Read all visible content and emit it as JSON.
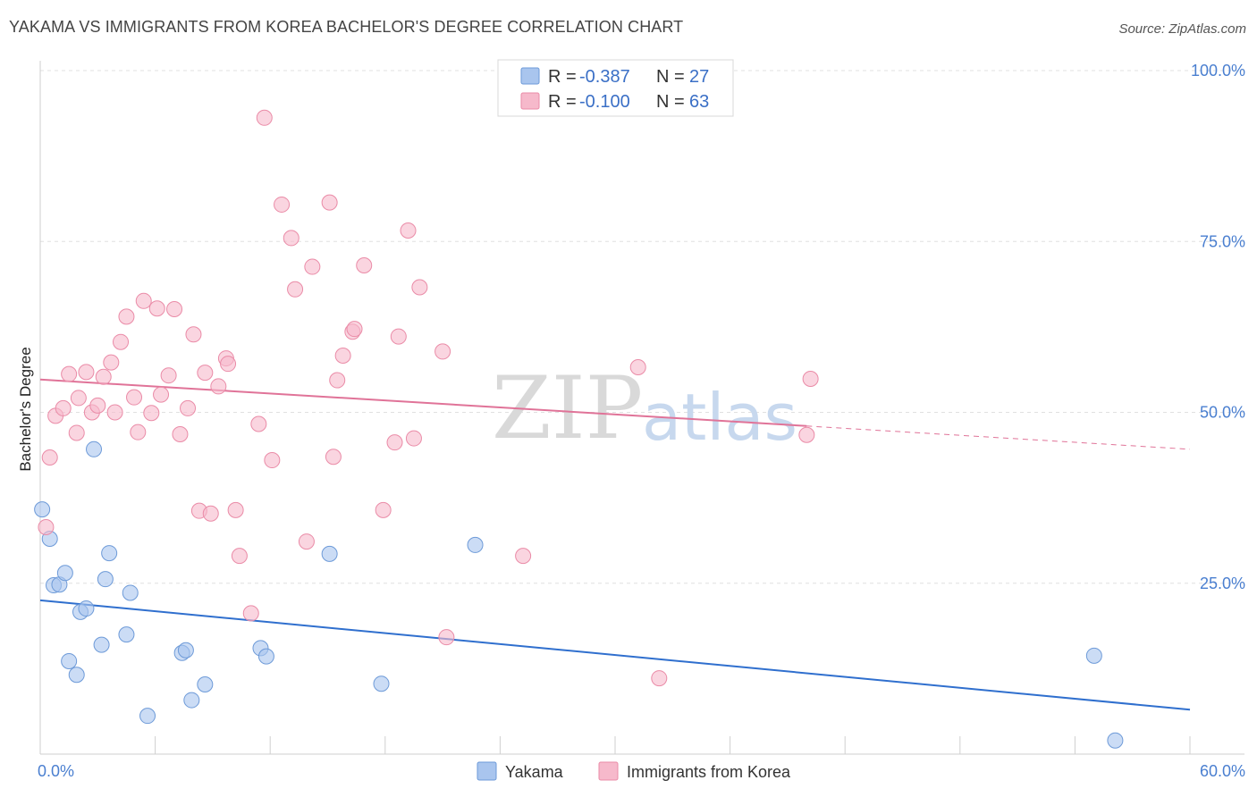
{
  "header": {
    "title": "YAKAMA VS IMMIGRANTS FROM KOREA BACHELOR'S DEGREE CORRELATION CHART",
    "source": "Source: ZipAtlas.com"
  },
  "watermark": {
    "part1": "ZIP",
    "part2": "atlas"
  },
  "stats": [
    {
      "r_label": "R =",
      "r": "-0.387",
      "n_label": "N =",
      "n": "27",
      "color": "#a9c5ee"
    },
    {
      "r_label": "R =",
      "r": "-0.100",
      "n_label": "N =",
      "n": "63",
      "color": "#f6b9cb"
    }
  ],
  "chart_data": {
    "type": "scatter",
    "title": "YAKAMA VS IMMIGRANTS FROM KOREA BACHELOR'S DEGREE CORRELATION CHART",
    "xlabel": "",
    "ylabel": "Bachelor's Degree",
    "xlim": [
      0,
      60
    ],
    "ylim": [
      0,
      100
    ],
    "x_tick_labels": [
      "0.0%",
      "60.0%"
    ],
    "y_ticks": [
      25,
      50,
      75,
      100
    ],
    "y_tick_labels": [
      "25.0%",
      "50.0%",
      "75.0%",
      "100.0%"
    ],
    "grid": true,
    "legend": "bottom-center",
    "series": [
      {
        "name": "Yakama",
        "color": "#a9c5ee",
        "edge": "#6d9ad8",
        "line_color": "#2f6fce",
        "trend": {
          "x0": 0,
          "y0": 22.5,
          "x1": 60,
          "y1": 6.5,
          "dashed_from": null
        },
        "points": [
          [
            0.1,
            35.8
          ],
          [
            0.5,
            31.5
          ],
          [
            0.7,
            24.7
          ],
          [
            1.0,
            24.8
          ],
          [
            1.3,
            26.5
          ],
          [
            1.5,
            13.6
          ],
          [
            1.9,
            11.6
          ],
          [
            2.1,
            20.8
          ],
          [
            2.4,
            21.3
          ],
          [
            2.8,
            44.6
          ],
          [
            3.2,
            16.0
          ],
          [
            3.4,
            25.6
          ],
          [
            3.6,
            29.4
          ],
          [
            4.5,
            17.5
          ],
          [
            4.7,
            23.6
          ],
          [
            5.6,
            5.6
          ],
          [
            7.4,
            14.8
          ],
          [
            7.6,
            15.2
          ],
          [
            7.9,
            7.9
          ],
          [
            8.6,
            10.2
          ],
          [
            11.5,
            15.5
          ],
          [
            11.8,
            14.3
          ],
          [
            15.1,
            29.3
          ],
          [
            17.8,
            10.3
          ],
          [
            22.7,
            30.6
          ],
          [
            55.0,
            14.4
          ],
          [
            56.1,
            2.0
          ]
        ]
      },
      {
        "name": "Immigrants from Korea",
        "color": "#f6b9cb",
        "edge": "#ea8ba7",
        "line_color": "#e07398",
        "trend": {
          "x0": 0,
          "y0": 54.8,
          "x1": 60,
          "y1": 44.6,
          "dashed_from": 40
        },
        "points": [
          [
            0.3,
            33.2
          ],
          [
            0.5,
            43.4
          ],
          [
            0.8,
            49.5
          ],
          [
            1.2,
            50.6
          ],
          [
            1.5,
            55.6
          ],
          [
            1.9,
            47.0
          ],
          [
            2.0,
            52.1
          ],
          [
            2.4,
            55.9
          ],
          [
            2.7,
            50.0
          ],
          [
            3.0,
            51.0
          ],
          [
            3.3,
            55.2
          ],
          [
            3.7,
            57.3
          ],
          [
            3.9,
            50.0
          ],
          [
            4.2,
            60.3
          ],
          [
            4.5,
            64.0
          ],
          [
            4.9,
            52.2
          ],
          [
            5.1,
            47.1
          ],
          [
            5.4,
            66.3
          ],
          [
            5.8,
            49.9
          ],
          [
            6.1,
            65.2
          ],
          [
            6.3,
            52.6
          ],
          [
            6.7,
            55.4
          ],
          [
            7.0,
            65.1
          ],
          [
            7.3,
            46.8
          ],
          [
            7.7,
            50.6
          ],
          [
            8.0,
            61.4
          ],
          [
            8.3,
            35.6
          ],
          [
            8.6,
            55.8
          ],
          [
            8.9,
            35.2
          ],
          [
            9.3,
            53.8
          ],
          [
            9.7,
            57.9
          ],
          [
            9.8,
            57.1
          ],
          [
            10.2,
            35.7
          ],
          [
            10.4,
            29.0
          ],
          [
            11.0,
            20.6
          ],
          [
            11.4,
            48.3
          ],
          [
            11.7,
            93.1
          ],
          [
            12.1,
            43.0
          ],
          [
            12.6,
            80.4
          ],
          [
            13.1,
            75.5
          ],
          [
            13.3,
            68.0
          ],
          [
            13.9,
            31.1
          ],
          [
            14.2,
            71.3
          ],
          [
            15.1,
            80.7
          ],
          [
            15.3,
            43.5
          ],
          [
            15.5,
            54.7
          ],
          [
            15.8,
            58.3
          ],
          [
            16.3,
            61.8
          ],
          [
            16.4,
            62.2
          ],
          [
            16.9,
            71.5
          ],
          [
            17.9,
            35.7
          ],
          [
            18.5,
            45.6
          ],
          [
            18.7,
            61.1
          ],
          [
            19.2,
            76.6
          ],
          [
            19.5,
            46.2
          ],
          [
            19.8,
            68.3
          ],
          [
            21.0,
            58.9
          ],
          [
            21.2,
            17.1
          ],
          [
            25.2,
            29.0
          ],
          [
            31.2,
            56.6
          ],
          [
            32.3,
            11.1
          ],
          [
            40.0,
            46.7
          ],
          [
            40.2,
            54.9
          ]
        ]
      }
    ]
  }
}
